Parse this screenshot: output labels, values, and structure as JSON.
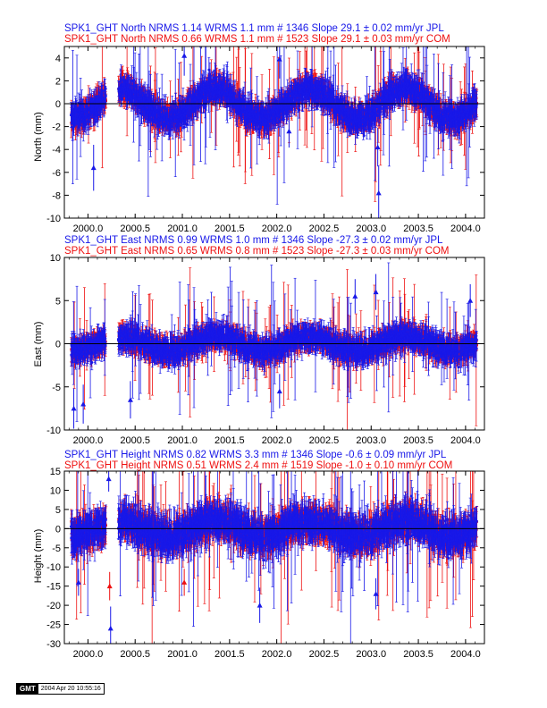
{
  "stamp": {
    "logo": "GMT",
    "timestamp": "2004 Apr 20 10:55:16"
  },
  "colors": {
    "jpl": "#1818e8",
    "com": "#ee1010",
    "zero_line": "#000000"
  },
  "chart_data": [
    {
      "type": "scatter",
      "component": "North",
      "ylabel": "North (mm)",
      "header_jpl": "SPK1_GHT North NRMS 1.14 WRMS  1.1 mm # 1346 Slope   29.1 ±  0.02 mm/yr JPL",
      "header_com": "SPK1_GHT North NRMS 0.66 WRMS  1.1 mm # 1523 Slope   29.1 ±  0.03 mm/yr COM",
      "xlim": [
        1999.75,
        2004.2
      ],
      "ylim": [
        -10,
        5
      ],
      "xticks": [
        2000.0,
        2000.5,
        2001.0,
        2001.5,
        2002.0,
        2002.5,
        2003.0,
        2003.5,
        2004.0
      ],
      "xtick_labels": [
        "2000.0",
        "2000.5",
        "2001.0",
        "2001.5",
        "2002.0",
        "2002.5",
        "2003.0",
        "2003.5",
        "2004.0"
      ],
      "yticks": [
        -10,
        -8,
        -6,
        -4,
        -2,
        0,
        2,
        4
      ],
      "ytick_labels": [
        "-10",
        "-8",
        "-6",
        "-4",
        "-2",
        "0",
        "2",
        "4"
      ],
      "data_span": [
        1999.82,
        2004.12
      ],
      "gap": [
        2000.19,
        2000.32
      ],
      "seasonal_amplitude": 1.3,
      "scatter_sigma": 0.9,
      "outliers": [
        {
          "t": 2000.06,
          "v": -5.6,
          "series": "jpl"
        },
        {
          "t": 2002.13,
          "v": -2.4,
          "series": "jpl"
        },
        {
          "t": 2003.08,
          "v": -7.8,
          "series": "jpl"
        },
        {
          "t": 2003.07,
          "v": -3.8,
          "series": "jpl"
        },
        {
          "t": 2002.03,
          "v": 3.9,
          "series": "jpl"
        },
        {
          "t": 2001.02,
          "v": 4.2,
          "series": "jpl"
        }
      ]
    },
    {
      "type": "scatter",
      "component": "East",
      "ylabel": "East (mm)",
      "header_jpl": "SPK1_GHT East NRMS 0.99 WRMS  1.0 mm # 1346 Slope  -27.3 ±  0.02 mm/yr JPL",
      "header_com": "SPK1_GHT East NRMS 0.65 WRMS  0.8 mm # 1523 Slope  -27.3 ±  0.03 mm/yr COM",
      "xlim": [
        1999.75,
        2004.2
      ],
      "ylim": [
        -10,
        10
      ],
      "xticks": [
        2000.0,
        2000.5,
        2001.0,
        2001.5,
        2002.0,
        2002.5,
        2003.0,
        2003.5,
        2004.0
      ],
      "xtick_labels": [
        "2000.0",
        "2000.5",
        "2001.0",
        "2001.5",
        "2002.0",
        "2002.5",
        "2003.0",
        "2003.5",
        "2004.0"
      ],
      "yticks": [
        -10,
        -5,
        0,
        5,
        10
      ],
      "ytick_labels": [
        "-10",
        "-5",
        "0",
        "5",
        "10"
      ],
      "data_span": [
        1999.82,
        2004.12
      ],
      "gap": [
        2000.19,
        2000.32
      ],
      "seasonal_amplitude": 0.8,
      "scatter_sigma": 1.1,
      "outliers": [
        {
          "t": 1999.85,
          "v": -7.5,
          "series": "jpl"
        },
        {
          "t": 1999.95,
          "v": -7.0,
          "series": "jpl"
        },
        {
          "t": 2000.45,
          "v": -6.5,
          "series": "jpl"
        },
        {
          "t": 2002.03,
          "v": -5.5,
          "series": "jpl"
        },
        {
          "t": 2003.05,
          "v": 6.0,
          "series": "jpl"
        },
        {
          "t": 2002.83,
          "v": 5.5,
          "series": "jpl"
        },
        {
          "t": 2004.05,
          "v": 5.0,
          "series": "jpl"
        }
      ]
    },
    {
      "type": "scatter",
      "component": "Height",
      "ylabel": "Height (mm)",
      "header_jpl": "SPK1_GHT Height NRMS 0.82 WRMS  3.3 mm # 1346 Slope   -0.6 ±  0.09 mm/yr JPL",
      "header_com": "SPK1_GHT Height NRMS 0.51 WRMS  2.4 mm # 1519 Slope   -1.0 ±  0.10 mm/yr COM",
      "xlim": [
        1999.75,
        2004.2
      ],
      "ylim": [
        -30,
        15
      ],
      "xticks": [
        2000.0,
        2000.5,
        2001.0,
        2001.5,
        2002.0,
        2002.5,
        2003.0,
        2003.5,
        2004.0
      ],
      "xtick_labels": [
        "2000.0",
        "2000.5",
        "2001.0",
        "2001.5",
        "2002.0",
        "2002.5",
        "2003.0",
        "2003.5",
        "2004.0"
      ],
      "yticks": [
        -30,
        -25,
        -20,
        -15,
        -10,
        -5,
        0,
        5,
        10,
        15
      ],
      "ytick_labels": [
        "-30",
        "-25",
        "-20",
        "-15",
        "-10",
        "-5",
        "0",
        "5",
        "10",
        "15"
      ],
      "data_span": [
        1999.82,
        2004.12
      ],
      "gap": [
        2000.19,
        2000.32
      ],
      "seasonal_amplitude": 2.0,
      "scatter_sigma": 3.4,
      "outliers": [
        {
          "t": 2000.24,
          "v": -26.0,
          "series": "jpl"
        },
        {
          "t": 2000.23,
          "v": -15.0,
          "series": "com"
        },
        {
          "t": 2001.02,
          "v": -14.0,
          "series": "com"
        },
        {
          "t": 2001.82,
          "v": -20.0,
          "series": "jpl"
        },
        {
          "t": 1999.9,
          "v": -14.0,
          "series": "jpl"
        },
        {
          "t": 2003.05,
          "v": -17.0,
          "series": "jpl"
        },
        {
          "t": 2000.22,
          "v": 13.0,
          "series": "jpl"
        }
      ]
    }
  ]
}
